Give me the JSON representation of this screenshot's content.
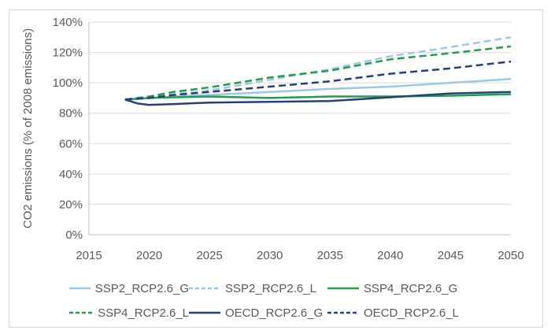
{
  "chart_data": {
    "type": "line",
    "title": "",
    "xlabel": "",
    "ylabel": "CO2 emissions (% of 2008 emissions)",
    "xlim": [
      2015,
      2050
    ],
    "ylim": [
      0,
      140
    ],
    "x_ticks": [
      2015,
      2020,
      2025,
      2030,
      2035,
      2040,
      2045,
      2050
    ],
    "y_ticks": [
      0,
      20,
      40,
      60,
      80,
      100,
      120,
      140
    ],
    "y_tick_format": "{v}%",
    "grid": "horizontal",
    "legend_position": "bottom",
    "x": [
      2018,
      2019,
      2020,
      2022,
      2025,
      2030,
      2035,
      2040,
      2045,
      2050
    ],
    "series": [
      {
        "name": "SSP2_RCP2.6_G",
        "color": "#9CC7E6",
        "style": "solid",
        "values": [
          89,
          89.5,
          90,
          91,
          92,
          94,
          96,
          97.5,
          100,
          102.5
        ]
      },
      {
        "name": "SSP2_RCP2.6_L",
        "color": "#9CC7E6",
        "style": "dashed",
        "values": [
          89,
          90,
          90.5,
          92.5,
          95,
          102,
          109,
          117.5,
          123.5,
          130
        ]
      },
      {
        "name": "SSP4_RCP2.6_G",
        "color": "#229C4E",
        "style": "solid",
        "values": [
          89,
          89.5,
          90,
          90.5,
          91,
          90,
          91,
          91,
          91.5,
          92.5
        ]
      },
      {
        "name": "SSP4_RCP2.6_L",
        "color": "#229C4E",
        "style": "dashed",
        "values": [
          89,
          90,
          91,
          94,
          97,
          103.5,
          108,
          115.5,
          119.5,
          124
        ]
      },
      {
        "name": "OECD_RCP2.6_G",
        "color": "#26407E",
        "style": "solid",
        "values": [
          89,
          86.5,
          85.5,
          86,
          87,
          87.5,
          88,
          90.5,
          93,
          94
        ]
      },
      {
        "name": "OECD_RCP2.6_L",
        "color": "#26407E",
        "style": "dashed",
        "values": [
          89,
          89.5,
          90,
          92,
          94,
          97.5,
          101,
          106,
          109.5,
          114
        ]
      }
    ],
    "colors": {
      "light_blue": "#9CC7E6",
      "green": "#229C4E",
      "navy": "#26407E",
      "grid": "#d9d9d9",
      "axis": "#bfbfbf",
      "text": "#595959",
      "card_border": "#d8d8d8"
    }
  }
}
